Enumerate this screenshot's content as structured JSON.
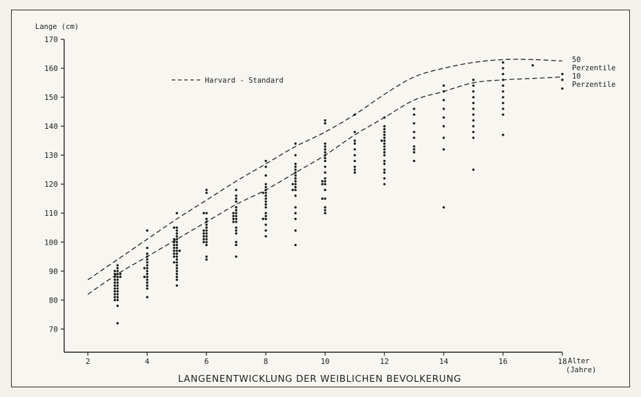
{
  "chart_data": {
    "type": "scatter",
    "title": "LANGENENTWICKLUNG DER WEIBLICHEN BEVOLKERUNG",
    "ylabel": "Lange (cm)",
    "xlabel": [
      "Alter",
      "(Jahre)"
    ],
    "xlim": [
      1.2,
      18
    ],
    "ylim": [
      62,
      170
    ],
    "x_ticks": [
      2,
      4,
      6,
      8,
      10,
      12,
      14,
      16,
      18
    ],
    "y_ticks": [
      70,
      80,
      90,
      100,
      110,
      120,
      130,
      140,
      150,
      160,
      170
    ],
    "legend": {
      "label": "Harvard - Standard",
      "style": "dashed"
    },
    "reference_curves": [
      {
        "label": [
          "50",
          "Perzentile"
        ],
        "style": "dashed",
        "x": [
          2,
          3,
          4,
          5,
          6,
          7,
          8,
          9,
          10,
          11,
          12,
          13,
          14,
          15,
          16,
          17,
          18
        ],
        "y": [
          87,
          94,
          101,
          108,
          114.5,
          121,
          127,
          133,
          138,
          144,
          151,
          157,
          160,
          162,
          163,
          163,
          162.5
        ]
      },
      {
        "label": [
          "10",
          "Perzentile"
        ],
        "style": "dashed",
        "x": [
          2,
          3,
          4,
          5,
          6,
          7,
          8,
          9,
          10,
          11,
          12,
          13,
          14,
          15,
          16,
          17,
          18
        ],
        "y": [
          82,
          89,
          95,
          101,
          107,
          113,
          118,
          124,
          130,
          137,
          143,
          149,
          152,
          155,
          156,
          156.5,
          157
        ]
      }
    ],
    "series": [
      {
        "x": 3,
        "values": [
          72,
          78,
          80,
          80,
          81,
          81,
          82,
          82,
          83,
          83,
          84,
          84,
          85,
          85,
          86,
          86,
          87,
          87,
          88,
          88,
          88,
          89,
          89,
          89,
          90,
          90,
          91,
          92
        ]
      },
      {
        "x": 4,
        "values": [
          81,
          84,
          85,
          86,
          87,
          88,
          88,
          89,
          90,
          91,
          91,
          92,
          93,
          94,
          95,
          96,
          98,
          104
        ]
      },
      {
        "x": 5,
        "values": [
          85,
          87,
          88,
          89,
          90,
          91,
          92,
          93,
          93,
          94,
          95,
          95,
          96,
          96,
          97,
          97,
          97,
          98,
          98,
          99,
          99,
          100,
          100,
          101,
          101,
          102,
          103,
          104,
          105,
          105,
          110
        ]
      },
      {
        "x": 6,
        "values": [
          94,
          95,
          99,
          100,
          100,
          101,
          101,
          102,
          102,
          103,
          103,
          104,
          104,
          105,
          106,
          107,
          108,
          110,
          110,
          117,
          118
        ]
      },
      {
        "x": 7,
        "values": [
          95,
          99,
          100,
          103,
          104,
          105,
          107,
          107,
          108,
          108,
          109,
          109,
          110,
          110,
          111,
          112,
          114,
          115,
          116,
          118
        ]
      },
      {
        "x": 8,
        "values": [
          102,
          104,
          106,
          108,
          108,
          109,
          110,
          112,
          113,
          114,
          115,
          116,
          117,
          117,
          118,
          119,
          120,
          123,
          126,
          128
        ]
      },
      {
        "x": 9,
        "values": [
          99,
          104,
          108,
          110,
          112,
          116,
          118,
          118,
          119,
          120,
          120,
          121,
          122,
          123,
          124,
          125,
          126,
          127,
          130,
          134
        ]
      },
      {
        "x": 10,
        "values": [
          110,
          111,
          112,
          115,
          115,
          118,
          120,
          120,
          121,
          121,
          122,
          124,
          126,
          128,
          129,
          130,
          131,
          132,
          133,
          134,
          141,
          142
        ]
      },
      {
        "x": 11,
        "values": [
          124,
          125,
          126,
          128,
          130,
          132,
          134,
          135,
          138,
          144
        ]
      },
      {
        "x": 12,
        "values": [
          120,
          122,
          124,
          125,
          127,
          128,
          130,
          131,
          132,
          133,
          134,
          135,
          135,
          136,
          137,
          138,
          139,
          140,
          143
        ]
      },
      {
        "x": 13,
        "values": [
          128,
          131,
          132,
          133,
          136,
          138,
          141,
          144,
          146
        ]
      },
      {
        "x": 14,
        "values": [
          112,
          132,
          136,
          140,
          143,
          146,
          149,
          152,
          154
        ]
      },
      {
        "x": 15,
        "values": [
          125,
          136,
          138,
          140,
          142,
          144,
          146,
          148,
          150,
          152,
          154,
          156
        ]
      },
      {
        "x": 16,
        "values": [
          137,
          144,
          146,
          148,
          150,
          152,
          154,
          156,
          158,
          160,
          162
        ]
      },
      {
        "x": 17,
        "values": [
          161
        ]
      },
      {
        "x": 18,
        "values": [
          153,
          156,
          158
        ]
      }
    ],
    "grid": false
  }
}
